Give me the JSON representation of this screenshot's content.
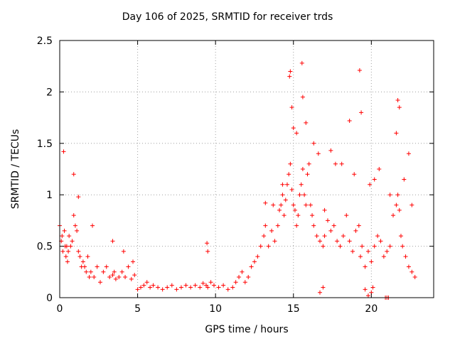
{
  "chart_data": {
    "type": "scatter",
    "title": "Day 106 of 2025, SRMTID for receiver trds",
    "xlabel": "GPS time / hours",
    "ylabel": "SRMTID / TECUs",
    "xlim": [
      0,
      24
    ],
    "ylim": [
      0,
      2.5
    ],
    "xticks": [
      0,
      5,
      10,
      15,
      20
    ],
    "yticks": [
      0,
      0.5,
      1,
      1.5,
      2,
      2.5
    ],
    "xtick_labels": [
      "0",
      "5",
      "10",
      "15",
      "20"
    ],
    "ytick_labels": [
      "0",
      "0.5",
      "1",
      "1.5",
      "2",
      "2.5"
    ],
    "grid": true,
    "marker": "+",
    "series": [
      {
        "name": "SRMTID",
        "color": "#ff0000",
        "x": [
          0.0,
          0.1,
          0.15,
          0.2,
          0.3,
          0.35,
          0.4,
          0.45,
          0.5,
          0.55,
          0.6,
          0.7,
          0.8,
          0.9,
          1.0,
          1.1,
          1.2,
          1.3,
          1.4,
          1.5,
          1.6,
          1.7,
          1.8,
          1.9,
          2.0,
          2.2,
          2.4,
          2.6,
          2.8,
          3.0,
          3.2,
          3.4,
          3.5,
          3.6,
          3.8,
          4.0,
          4.2,
          4.4,
          4.6,
          4.8,
          5.0,
          5.2,
          5.4,
          5.6,
          5.8,
          6.0,
          6.3,
          6.6,
          6.9,
          7.2,
          7.5,
          7.8,
          8.1,
          8.4,
          8.7,
          9.0,
          9.2,
          9.4,
          9.5,
          9.7,
          9.9,
          10.2,
          10.5,
          10.8,
          11.1,
          11.3,
          11.5,
          11.7,
          11.9,
          12.1,
          12.3,
          12.5,
          12.7,
          12.9,
          13.1,
          13.2,
          13.4,
          13.6,
          13.8,
          14.0,
          14.1,
          14.2,
          14.3,
          14.4,
          14.5,
          14.6,
          14.7,
          14.8,
          14.9,
          15.0,
          15.1,
          15.2,
          15.3,
          15.4,
          15.5,
          15.6,
          15.7,
          15.8,
          15.9,
          16.0,
          16.1,
          16.2,
          16.3,
          16.5,
          16.7,
          16.9,
          17.0,
          17.2,
          17.4,
          17.6,
          17.8,
          18.0,
          18.2,
          18.4,
          18.6,
          18.8,
          19.0,
          19.2,
          19.3,
          19.4,
          19.6,
          19.8,
          20.0,
          20.2,
          20.4,
          20.6,
          20.8,
          21.0,
          21.2,
          21.4,
          21.6,
          21.7,
          21.8,
          21.9,
          22.0,
          22.2,
          22.4,
          22.6,
          22.8,
          0.25,
          0.9,
          1.2,
          2.1,
          3.4,
          4.1,
          4.7,
          9.45,
          9.5,
          13.2,
          14.75,
          14.8,
          15.55,
          15.6,
          17.0,
          18.6,
          19.25,
          19.35,
          21.6,
          21.7,
          21.8,
          22.4,
          14.9,
          15.2,
          16.3,
          17.4,
          18.1,
          19.9,
          20.5,
          22.1,
          13.7,
          14.3,
          15.0,
          15.8,
          16.6,
          17.7,
          18.9,
          20.2,
          21.2,
          22.6,
          16.7,
          16.9,
          19.6,
          19.8,
          20.0,
          20.1,
          20.9,
          21.0,
          21.1
        ],
        "y": [
          0.7,
          0.55,
          0.6,
          0.45,
          0.65,
          0.5,
          0.4,
          0.5,
          0.35,
          0.45,
          0.6,
          0.5,
          0.55,
          0.8,
          0.7,
          0.65,
          0.45,
          0.4,
          0.3,
          0.35,
          0.3,
          0.25,
          0.4,
          0.2,
          0.25,
          0.2,
          0.3,
          0.15,
          0.25,
          0.3,
          0.2,
          0.22,
          0.25,
          0.18,
          0.2,
          0.25,
          0.2,
          0.3,
          0.18,
          0.22,
          0.08,
          0.1,
          0.12,
          0.15,
          0.1,
          0.12,
          0.1,
          0.08,
          0.1,
          0.12,
          0.08,
          0.1,
          0.12,
          0.1,
          0.12,
          0.1,
          0.14,
          0.12,
          0.1,
          0.15,
          0.12,
          0.1,
          0.12,
          0.08,
          0.1,
          0.15,
          0.2,
          0.25,
          0.15,
          0.2,
          0.3,
          0.35,
          0.4,
          0.5,
          0.6,
          0.7,
          0.5,
          0.65,
          0.55,
          0.7,
          0.85,
          0.9,
          1.0,
          0.8,
          0.95,
          1.1,
          1.2,
          1.3,
          1.05,
          0.9,
          0.85,
          0.7,
          0.8,
          1.0,
          1.1,
          1.25,
          1.0,
          0.9,
          1.2,
          1.3,
          0.9,
          0.8,
          0.7,
          0.6,
          0.55,
          0.5,
          0.6,
          0.75,
          0.65,
          0.7,
          0.55,
          0.5,
          0.6,
          0.8,
          0.55,
          0.45,
          0.65,
          0.7,
          0.4,
          0.5,
          0.3,
          0.45,
          0.35,
          0.5,
          0.6,
          0.55,
          0.4,
          0.45,
          0.5,
          0.8,
          0.9,
          1.0,
          0.85,
          0.6,
          0.5,
          0.4,
          0.3,
          0.25,
          0.2,
          1.42,
          1.2,
          0.98,
          0.7,
          0.55,
          0.45,
          0.35,
          0.53,
          0.45,
          0.92,
          2.15,
          2.2,
          2.28,
          1.95,
          0.85,
          1.72,
          2.21,
          1.8,
          1.6,
          1.92,
          1.85,
          1.4,
          1.85,
          1.6,
          1.5,
          1.43,
          1.3,
          1.1,
          1.25,
          1.15,
          0.9,
          1.1,
          1.65,
          1.7,
          1.4,
          1.3,
          1.2,
          1.15,
          1.0,
          0.9,
          0.05,
          0.1,
          0.08,
          0.02,
          0.05,
          0.1,
          0.0,
          0.0,
          0.0
        ]
      }
    ]
  }
}
